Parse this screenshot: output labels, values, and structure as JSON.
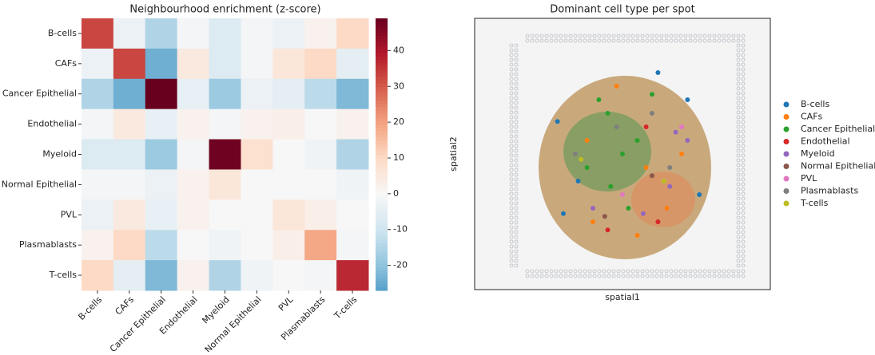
{
  "chart_data": [
    {
      "type": "heatmap",
      "title": "Neighbourhood enrichment (z-score)",
      "categories": [
        "B-cells",
        "CAFs",
        "Cancer Epithelial",
        "Endothelial",
        "Myeloid",
        "Normal Epithelial",
        "PVL",
        "Plasmablasts",
        "T-cells"
      ],
      "z": [
        [
          33,
          -3,
          -15,
          -1,
          -7,
          -1,
          -3,
          2,
          10
        ],
        [
          -3,
          33,
          -24,
          5,
          -7,
          -1,
          6,
          10,
          -5
        ],
        [
          -15,
          -24,
          49,
          -4,
          -18,
          -3,
          -5,
          -13,
          -22
        ],
        [
          -1,
          5,
          -4,
          2,
          -1,
          2,
          3,
          0,
          2
        ],
        [
          -7,
          -7,
          -18,
          -1,
          48,
          8,
          0,
          -2,
          -15
        ],
        [
          -1,
          -1,
          -3,
          2,
          6,
          0,
          0,
          0,
          -2
        ],
        [
          -3,
          5,
          -4,
          2,
          0,
          0,
          6,
          3,
          0
        ],
        [
          2,
          10,
          -13,
          0,
          -2,
          0,
          3,
          19,
          -1
        ],
        [
          10,
          -5,
          -22,
          2,
          -15,
          -2,
          0,
          -1,
          37
        ]
      ],
      "colormap": "RdBu_r",
      "center": 0,
      "colorbar_lim": [
        -27,
        49
      ],
      "colorbar_ticks": [
        -20,
        -10,
        0,
        10,
        20,
        30,
        40
      ]
    },
    {
      "type": "scatter",
      "title": "Dominant cell type per spot",
      "xlabel": "spatial1",
      "ylabel": "spatial2",
      "xlim": [
        0,
        100
      ],
      "ylim": [
        0,
        100
      ],
      "legend": "right",
      "series": [
        {
          "name": "B-cells",
          "color": "#1f77b4",
          "x": [
            28,
            35,
            72,
            76,
            30,
            62
          ],
          "y": [
            62,
            40,
            70,
            35,
            28,
            80
          ]
        },
        {
          "name": "CAFs",
          "color": "#ff7f0e",
          "x": [
            40,
            55,
            65,
            38,
            70,
            48,
            58
          ],
          "y": [
            25,
            20,
            30,
            55,
            50,
            75,
            45
          ]
        },
        {
          "name": "Cancer Epithelial",
          "color": "#2ca02c",
          "x": [
            42,
            45,
            50,
            55,
            38,
            60,
            46,
            52
          ],
          "y": [
            70,
            65,
            50,
            55,
            45,
            72,
            38,
            30
          ]
        },
        {
          "name": "Endothelial",
          "color": "#d62728",
          "x": [
            45,
            62,
            58
          ],
          "y": [
            22,
            25,
            60
          ]
        },
        {
          "name": "Myeloid",
          "color": "#9467bd",
          "x": [
            68,
            72,
            66,
            40,
            57
          ],
          "y": [
            58,
            55,
            38,
            30,
            28
          ]
        },
        {
          "name": "Normal Epithelial",
          "color": "#8c564b",
          "x": [
            44,
            60
          ],
          "y": [
            27,
            42
          ]
        },
        {
          "name": "PVL",
          "color": "#e377c2",
          "x": [
            70,
            50
          ],
          "y": [
            60,
            35
          ]
        },
        {
          "name": "Plasmablasts",
          "color": "#7f7f7f",
          "x": [
            34,
            48,
            60,
            66
          ],
          "y": [
            50,
            60,
            65,
            45
          ]
        },
        {
          "name": "T-cells",
          "color": "#bcbd22",
          "x": [
            36,
            64
          ],
          "y": [
            48,
            40
          ]
        }
      ]
    }
  ]
}
